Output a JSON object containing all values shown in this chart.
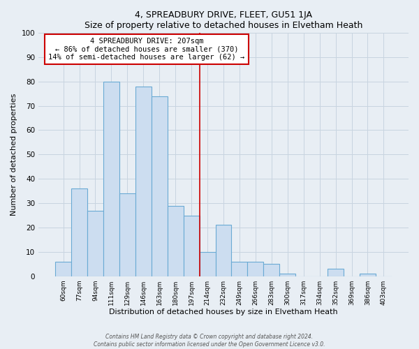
{
  "title": "4, SPREADBURY DRIVE, FLEET, GU51 1JA",
  "subtitle": "Size of property relative to detached houses in Elvetham Heath",
  "xlabel": "Distribution of detached houses by size in Elvetham Heath",
  "ylabel": "Number of detached properties",
  "bar_labels": [
    "60sqm",
    "77sqm",
    "94sqm",
    "111sqm",
    "129sqm",
    "146sqm",
    "163sqm",
    "180sqm",
    "197sqm",
    "214sqm",
    "232sqm",
    "249sqm",
    "266sqm",
    "283sqm",
    "300sqm",
    "317sqm",
    "334sqm",
    "352sqm",
    "369sqm",
    "386sqm",
    "403sqm"
  ],
  "bar_heights": [
    6,
    36,
    27,
    80,
    34,
    78,
    74,
    29,
    25,
    10,
    21,
    6,
    6,
    5,
    1,
    0,
    0,
    3,
    0,
    1,
    0
  ],
  "bar_color": "#ccddf0",
  "bar_edge_color": "#6aaad4",
  "vline_x_index": 8.5,
  "vline_color": "#cc0000",
  "annotation_text": "4 SPREADBURY DRIVE: 207sqm\n← 86% of detached houses are smaller (370)\n14% of semi-detached houses are larger (62) →",
  "annotation_box_facecolor": "#ffffff",
  "annotation_box_edgecolor": "#cc0000",
  "ylim": [
    0,
    100
  ],
  "yticks": [
    0,
    10,
    20,
    30,
    40,
    50,
    60,
    70,
    80,
    90,
    100
  ],
  "bg_color": "#e8eef4",
  "grid_color": "#c8d4e0",
  "footer1": "Contains HM Land Registry data © Crown copyright and database right 2024.",
  "footer2": "Contains public sector information licensed under the Open Government Licence v3.0."
}
